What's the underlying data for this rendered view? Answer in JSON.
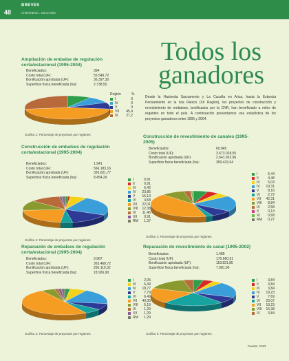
{
  "header": {
    "section": "BREVES",
    "page": "48",
    "issue": "CHILERIEGO - JULIO 2005"
  },
  "title": "Todos los ganadores",
  "title_line1": "Todos los",
  "title_line2": "ganadores",
  "intro": "Desde la Hacienda Sacramento y La Cucaña en Arica, hasta la Estancia Pensamiento en la Isla Riesco (XII Región), los proyectos de construcción y revestimiento de embalses, bonificados por la CNR, han beneficiado a miles de regantes en todo el país. A continuación presentamos una estadística de los proyectos ganadores entre 1995 y 2004.",
  "source": "Fuente: CNR.",
  "stat_labels": {
    "beneficiados": "Beneficiados:",
    "costo": "Costo total (UF):",
    "bonificacion": "Bonificación aprobada (UF):",
    "superficie": "Superficie física beneficiada (ha):"
  },
  "legend_headers": {
    "region": "Región",
    "pct": "%"
  },
  "region_colors": {
    "I": "#2e9e4a",
    "II": "#d62a24",
    "III": "#f2d21b",
    "IV": "#3a9ed9",
    "V": "#2d3a96",
    "VI": "#17a3a0",
    "VII": "#f59c22",
    "VIII": "#8a9a2e",
    "IX": "#b86a3a",
    "X": "#d63a8c",
    "XI": "#6bb84a",
    "XII": "#8a5a9a",
    "RM": "#7a7a6a"
  },
  "chart_data": [
    {
      "type": "pie",
      "title": "Ampliación de embalse de regulación corta/estacional (1995-2004)",
      "caption": "Gráfico 1: Porcentaje de proyectos por regiones.",
      "stats": {
        "beneficiados": "394",
        "costo": "55.549,72",
        "bonificacion": "36.397,30",
        "superficie": "2.738,50"
      },
      "slices": [
        {
          "label": "I",
          "value": "9"
        },
        {
          "label": "IV",
          "value": "9"
        },
        {
          "label": "V",
          "value": "9"
        },
        {
          "label": "VII",
          "value": "45,4"
        },
        {
          "label": "IX",
          "value": "27,2"
        }
      ]
    },
    {
      "type": "pie",
      "title": "Construcción de embalses de regulación corta/estacional (1995-2004)",
      "caption": "Gráfico 2: Porcentaje de proyectos por regiones.",
      "stats": {
        "beneficiados": "1.941",
        "costo": "566.183,16",
        "bonificacion": "326.621,77",
        "superficie": "8.454,29"
      },
      "slices": [
        {
          "label": "I",
          "value": "0,91"
        },
        {
          "label": "II",
          "value": "0,91"
        },
        {
          "label": "III",
          "value": "6,42"
        },
        {
          "label": "IV",
          "value": "23,85"
        },
        {
          "label": "V",
          "value": "15,13"
        },
        {
          "label": "VI",
          "value": "4,58"
        },
        {
          "label": "VII",
          "value": "22,01"
        },
        {
          "label": "VIII",
          "value": "12,38"
        },
        {
          "label": "IX",
          "value": "11,46"
        },
        {
          "label": "XII",
          "value": "0,91"
        },
        {
          "label": "RM",
          "value": "1,37"
        }
      ]
    },
    {
      "type": "pie",
      "title": "Reparación de embalses de regulación corta/estacional (1995-2004)",
      "caption": "Gráfico 3: Porcentaje de proyectos por regiones.",
      "stats": {
        "beneficiados": "3.967",
        "costo": "363.468,72",
        "bonificacion": "256.119,32",
        "superficie": "18.926,90"
      },
      "slices": [
        {
          "label": "I",
          "value": "2,05"
        },
        {
          "label": "III",
          "value": "6,49"
        },
        {
          "label": "IV",
          "value": "18,77"
        },
        {
          "label": "V",
          "value": "7,79"
        },
        {
          "label": "VI",
          "value": "6,49"
        },
        {
          "label": "VII",
          "value": "49,35"
        },
        {
          "label": "VIII",
          "value": "5,19"
        },
        {
          "label": "IX",
          "value": "1,29"
        },
        {
          "label": "XII",
          "value": "1,29"
        },
        {
          "label": "RM",
          "value": "1,29"
        }
      ]
    },
    {
      "type": "pie",
      "title": "Construcción de revestimiento de canales (1995-2005)",
      "caption": "Gráfico 4: Porcentaje de proyectos por regiones.",
      "stats": {
        "beneficiados": "60.845",
        "costo": "3.673.028,55",
        "bonificacion": "2.641.932,96",
        "superficie": "359.433,64"
      },
      "slices": [
        {
          "label": "I",
          "value": "5,44"
        },
        {
          "label": "II",
          "value": "4,48"
        },
        {
          "label": "III",
          "value": "5,03"
        },
        {
          "label": "IV",
          "value": "19,31"
        },
        {
          "label": "V",
          "value": "8,16"
        },
        {
          "label": "VI",
          "value": "2,72"
        },
        {
          "label": "VII",
          "value": "42,31"
        },
        {
          "label": "VIII",
          "value": "8,84"
        },
        {
          "label": "IX",
          "value": "2,58"
        },
        {
          "label": "X",
          "value": "0,13"
        },
        {
          "label": "XI",
          "value": "0,68"
        },
        {
          "label": "RM",
          "value": "0,27"
        }
      ]
    },
    {
      "type": "pie",
      "title": "Reparación de revestimiento de canal (1995-2002)",
      "caption": "Gráfico 5: Porcentaje de proyectos por regiones.",
      "stats": {
        "beneficiados": "1.486",
        "costo": "170.660,51",
        "bonificacion": "118.821,85",
        "superficie": "7.981,90"
      },
      "slices": [
        {
          "label": "I",
          "value": "3,84"
        },
        {
          "label": "II",
          "value": "3,84"
        },
        {
          "label": "III",
          "value": "3,84"
        },
        {
          "label": "IV",
          "value": "19,23"
        },
        {
          "label": "V",
          "value": "7,69"
        },
        {
          "label": "VI",
          "value": "23,07"
        },
        {
          "label": "VII",
          "value": "19,23"
        },
        {
          "label": "VIII",
          "value": "15,38"
        },
        {
          "label": "IX",
          "value": "3,84"
        }
      ]
    }
  ]
}
